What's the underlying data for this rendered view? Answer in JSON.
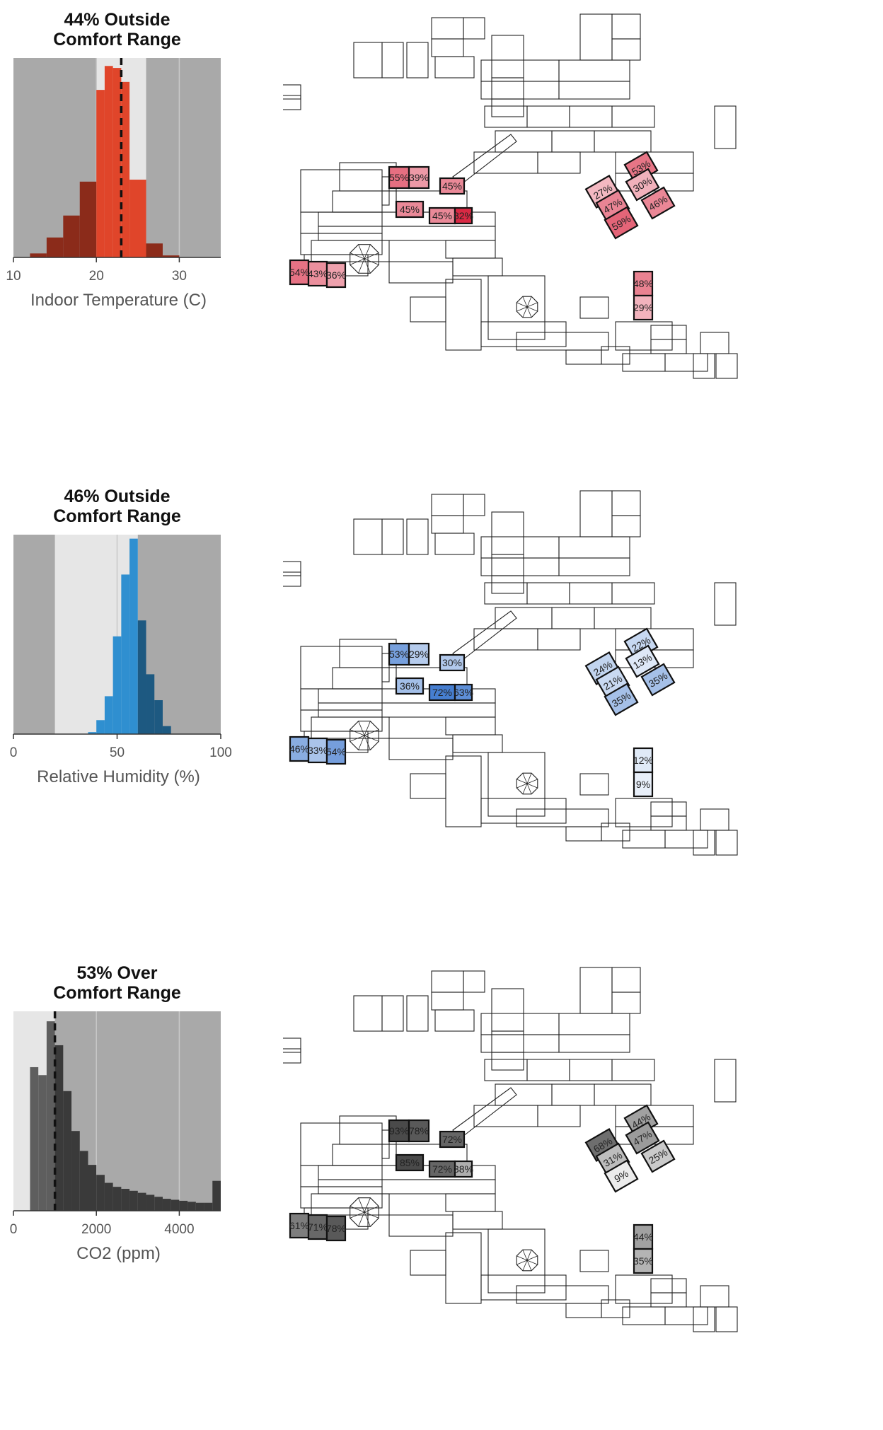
{
  "chart_data": [
    {
      "type": "bar",
      "title": "44% Outside Comfort Range",
      "title_lines": [
        "44% Outside",
        "Comfort Range"
      ],
      "xlabel": "Indoor Temperature (C)",
      "xlim": [
        10,
        35
      ],
      "xticks": [
        "10",
        "20",
        "30"
      ],
      "xtick_values": [
        10,
        20,
        30
      ],
      "comfort_range": [
        20,
        26
      ],
      "dashed_line": 23,
      "bins": [
        12,
        14,
        16,
        18,
        20,
        21,
        22,
        23,
        24,
        26,
        28,
        30
      ],
      "counts": [
        0.02,
        0.1,
        0.21,
        0.38,
        0.84,
        0.96,
        0.95,
        0.88,
        0.39,
        0.07,
        0.01
      ],
      "bar_color": "#e0452a",
      "rooms": [
        "55%",
        "39%",
        "45%",
        "45%",
        "45%",
        "82%",
        "54%",
        "43%",
        "36%",
        "53%",
        "27%",
        "30%",
        "47%",
        "46%",
        "59%",
        "48%",
        "29%"
      ],
      "room_values": [
        55,
        39,
        45,
        45,
        45,
        82,
        54,
        43,
        36,
        53,
        27,
        30,
        47,
        46,
        59,
        48,
        29
      ],
      "scale_color": "#d8213d"
    },
    {
      "type": "bar",
      "title": "46% Outside Comfort Range",
      "title_lines": [
        "46% Outside",
        "Comfort Range"
      ],
      "xlabel": "Relative Humidity (%)",
      "xlim": [
        0,
        100
      ],
      "xticks": [
        "0",
        "50",
        "100"
      ],
      "xtick_values": [
        0,
        50,
        100
      ],
      "comfort_range": [
        20,
        60
      ],
      "dashed_line": null,
      "bins": [
        36,
        40,
        44,
        48,
        52,
        56,
        60,
        64,
        68,
        72,
        76
      ],
      "counts": [
        0.01,
        0.07,
        0.19,
        0.49,
        0.8,
        0.98,
        0.57,
        0.3,
        0.17,
        0.04
      ],
      "bar_color": "#2f8fd0",
      "rooms": [
        "53%",
        "29%",
        "30%",
        "36%",
        "72%",
        "63%",
        "46%",
        "33%",
        "54%",
        "22%",
        "24%",
        "13%",
        "21%",
        "35%",
        "35%",
        "12%",
        "9%"
      ],
      "room_values": [
        53,
        29,
        30,
        36,
        72,
        63,
        46,
        33,
        54,
        22,
        24,
        13,
        21,
        35,
        35,
        12,
        9
      ],
      "scale_color": "#2567c8"
    },
    {
      "type": "bar",
      "title": "53% Over Comfort Range",
      "title_lines": [
        "53% Over",
        "Comfort Range"
      ],
      "xlabel": "CO2 (ppm)",
      "xlim": [
        0,
        5000
      ],
      "xticks": [
        "0",
        "2000",
        "4000"
      ],
      "xtick_values": [
        0,
        2000,
        4000
      ],
      "comfort_range": [
        0,
        1000
      ],
      "dashed_line": 1000,
      "bins": [
        400,
        600,
        800,
        1000,
        1200,
        1400,
        1600,
        1800,
        2000,
        2200,
        2400,
        2600,
        2800,
        3000,
        3200,
        3400,
        3600,
        3800,
        4000,
        4200,
        4400,
        4600,
        4800,
        5000
      ],
      "counts": [
        0.72,
        0.68,
        0.95,
        0.83,
        0.6,
        0.4,
        0.3,
        0.23,
        0.18,
        0.14,
        0.12,
        0.11,
        0.1,
        0.09,
        0.08,
        0.07,
        0.06,
        0.055,
        0.05,
        0.045,
        0.04,
        0.04,
        0.15
      ],
      "bar_color": "#5e5e5e",
      "rooms": [
        "93%",
        "78%",
        "72%",
        "85%",
        "72%",
        "38%",
        "61%",
        "71%",
        "78%",
        "44%",
        "68%",
        "47%",
        "31%",
        "25%",
        "9%",
        "44%",
        "35%"
      ],
      "room_values": [
        93,
        78,
        72,
        85,
        72,
        38,
        61,
        71,
        78,
        44,
        68,
        47,
        31,
        25,
        9,
        44,
        35
      ],
      "scale_color": "#4a4a4a"
    }
  ]
}
